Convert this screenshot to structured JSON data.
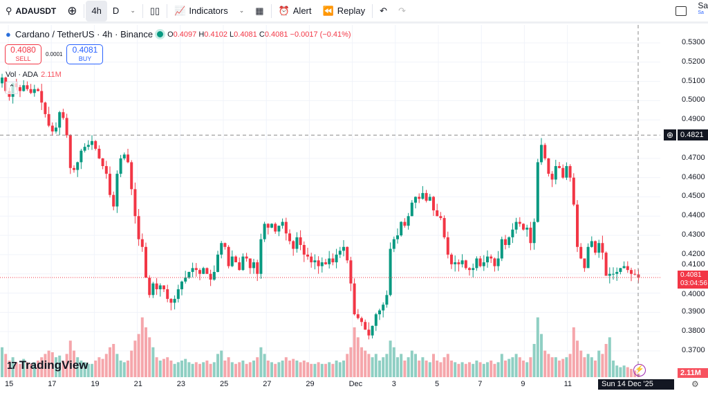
{
  "toolbar": {
    "symbol": "ADAUSDT",
    "tf_4h": "4h",
    "tf_d": "D",
    "indicators": "Indicators",
    "alert": "Alert",
    "replay": "Replay",
    "account": "Sa",
    "account_sub": "Sa"
  },
  "legend": {
    "title": "Cardano / TetherUS · 4h · Binance",
    "o_label": "O",
    "o": "0.4097",
    "h_label": "H",
    "h": "0.4102",
    "l_label": "L",
    "l": "0.4081",
    "c_label": "C",
    "c": "0.4081",
    "change": "−0.0017 (−0.41%)"
  },
  "trade": {
    "sell_price": "0.4080",
    "sell": "SELL",
    "spread": "0.0001",
    "buy_price": "0.4081",
    "buy": "BUY"
  },
  "volume": {
    "label": "Vol · ADA",
    "value": "2.11M"
  },
  "logo": "TradingView",
  "crosshair": {
    "price": "0.4821",
    "time": "Sun 14 Dec '25   04:00"
  },
  "last_price": {
    "price": "0.4081",
    "countdown": "03:04:56"
  },
  "colors": {
    "up": "#089981",
    "down": "#f23645",
    "up_vol": "#8fcfc3",
    "down_vol": "#f5a6ab"
  },
  "chart_data": {
    "type": "candlestick",
    "title": "Cardano / TetherUS · 4h · Binance",
    "price_ticks": [
      "0.5300",
      "0.5200",
      "0.5100",
      "0.5000",
      "0.4900",
      "0.4700",
      "0.4600",
      "0.4500",
      "0.4400",
      "0.4300",
      "0.4200",
      "0.4100",
      "0.4000",
      "0.3900",
      "0.3800",
      "0.3700"
    ],
    "ylim": [
      0.3535,
      0.5455
    ],
    "time_ticks": [
      "15",
      "17",
      "19",
      "21",
      "23",
      "25",
      "27",
      "29",
      "Dec",
      "3",
      "5",
      "7",
      "9",
      "11"
    ],
    "closes": [
      0.512,
      0.505,
      0.502,
      0.509,
      0.507,
      0.505,
      0.508,
      0.506,
      0.504,
      0.506,
      0.505,
      0.499,
      0.493,
      0.487,
      0.484,
      0.486,
      0.494,
      0.491,
      0.482,
      0.465,
      0.464,
      0.468,
      0.474,
      0.476,
      0.477,
      0.479,
      0.475,
      0.47,
      0.466,
      0.462,
      0.451,
      0.445,
      0.462,
      0.47,
      0.472,
      0.468,
      0.454,
      0.44,
      0.428,
      0.424,
      0.408,
      0.399,
      0.405,
      0.402,
      0.404,
      0.402,
      0.397,
      0.395,
      0.397,
      0.402,
      0.406,
      0.408,
      0.411,
      0.413,
      0.412,
      0.41,
      0.413,
      0.41,
      0.407,
      0.411,
      0.42,
      0.426,
      0.424,
      0.414,
      0.419,
      0.416,
      0.412,
      0.419,
      0.418,
      0.413,
      0.416,
      0.41,
      0.428,
      0.436,
      0.434,
      0.436,
      0.432,
      0.435,
      0.437,
      0.431,
      0.427,
      0.423,
      0.429,
      0.425,
      0.42,
      0.419,
      0.416,
      0.417,
      0.414,
      0.416,
      0.415,
      0.418,
      0.416,
      0.42,
      0.422,
      0.424,
      0.417,
      0.405,
      0.389,
      0.387,
      0.385,
      0.381,
      0.378,
      0.383,
      0.389,
      0.391,
      0.394,
      0.399,
      0.423,
      0.428,
      0.43,
      0.437,
      0.435,
      0.44,
      0.447,
      0.45,
      0.449,
      0.452,
      0.448,
      0.45,
      0.443,
      0.44,
      0.439,
      0.429,
      0.42,
      0.415,
      0.416,
      0.415,
      0.417,
      0.413,
      0.412,
      0.413,
      0.418,
      0.414,
      0.416,
      0.419,
      0.418,
      0.414,
      0.418,
      0.428,
      0.425,
      0.429,
      0.433,
      0.437,
      0.436,
      0.433,
      0.434,
      0.426,
      0.437,
      0.468,
      0.477,
      0.47,
      0.462,
      0.459,
      0.466,
      0.465,
      0.46,
      0.466,
      0.46,
      0.446,
      0.424,
      0.418,
      0.413,
      0.424,
      0.427,
      0.421,
      0.426,
      0.421,
      0.409,
      0.41,
      0.41,
      0.411,
      0.413,
      0.414,
      0.412,
      0.41,
      0.4097,
      0.4081
    ],
    "volumes_m": [
      18,
      14,
      10,
      12,
      9,
      8,
      11,
      9,
      8,
      9,
      10,
      12,
      14,
      16,
      15,
      12,
      13,
      10,
      14,
      22,
      16,
      12,
      10,
      9,
      8,
      8,
      10,
      12,
      11,
      14,
      18,
      20,
      14,
      10,
      9,
      10,
      16,
      22,
      26,
      36,
      30,
      24,
      18,
      12,
      10,
      11,
      12,
      10,
      8,
      9,
      10,
      11,
      9,
      8,
      9,
      8,
      9,
      10,
      8,
      9,
      14,
      16,
      10,
      12,
      9,
      8,
      9,
      10,
      8,
      9,
      10,
      12,
      18,
      14,
      10,
      9,
      8,
      9,
      10,
      12,
      10,
      11,
      10,
      9,
      10,
      9,
      8,
      8,
      9,
      8,
      8,
      9,
      8,
      10,
      9,
      10,
      14,
      18,
      30,
      24,
      18,
      16,
      14,
      12,
      14,
      10,
      12,
      14,
      22,
      18,
      12,
      14,
      10,
      12,
      16,
      14,
      10,
      12,
      10,
      9,
      14,
      10,
      9,
      12,
      14,
      10,
      9,
      8,
      9,
      8,
      9,
      8,
      10,
      9,
      8,
      9,
      10,
      8,
      9,
      14,
      10,
      11,
      12,
      14,
      12,
      10,
      9,
      12,
      20,
      36,
      26,
      16,
      14,
      12,
      12,
      10,
      11,
      12,
      14,
      30,
      22,
      16,
      12,
      14,
      12,
      10,
      16,
      14,
      20,
      24,
      10,
      7,
      6,
      7,
      6,
      5,
      4,
      2.11
    ]
  }
}
